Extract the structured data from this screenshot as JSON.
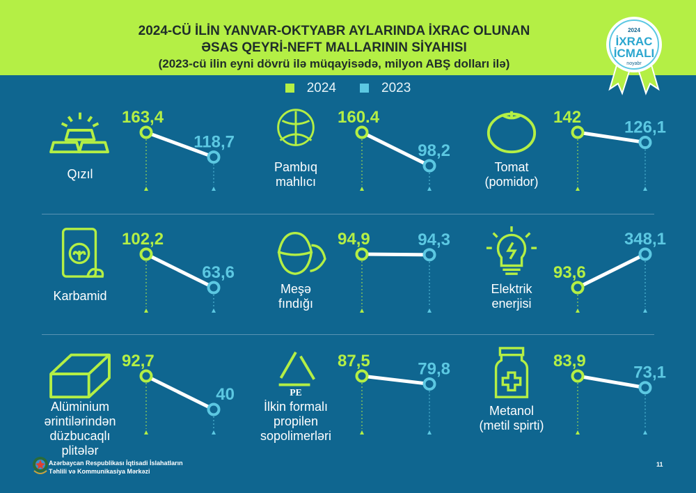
{
  "header": {
    "title_line1": "2024-CÜ İLİN YANVAR-OKTYABR AYLARINDA İXRAC OLUNAN",
    "title_line2": "ƏSAS QEYRİ-NEFT MALLARININ SİYAHISI",
    "subtitle": "(2023-cü ilin eyni dövrü ilə müqayisədə, milyon ABŞ dolları ilə)"
  },
  "badge": {
    "year": "2024",
    "line1": "İXRAC",
    "line2": "İCMALI",
    "month": "noyabr"
  },
  "colors": {
    "top_bg": "#b4ef45",
    "body_bg": "#0f6690",
    "series_2024": "#b4ef45",
    "series_2023": "#5cc8e2"
  },
  "chart_data": {
    "type": "slope",
    "legend": [
      {
        "name": "2024",
        "color": "#b4ef45"
      },
      {
        "name": "2023",
        "color": "#5cc8e2"
      }
    ],
    "panels": [
      {
        "label": [
          "Qızıl"
        ],
        "icon": "gold-bars-icon",
        "v2024": 163.4,
        "v2024_text": "163,4",
        "v2023": 118.7,
        "v2023_text": "118,7"
      },
      {
        "label": [
          "Pambıq",
          "mahlıcı"
        ],
        "icon": "cotton-icon",
        "v2024": 160.4,
        "v2024_text": "160.4",
        "v2023": 98.2,
        "v2023_text": "98,2"
      },
      {
        "label": [
          "Tomat",
          "(pomidor)"
        ],
        "icon": "tomato-icon",
        "v2024": 142,
        "v2024_text": "142",
        "v2023": 126.1,
        "v2023_text": "126,1"
      },
      {
        "label": [
          "Karbamid"
        ],
        "icon": "fertilizer-bag-icon",
        "v2024": 102.2,
        "v2024_text": "102,2",
        "v2023": 63.6,
        "v2023_text": "63,6"
      },
      {
        "label": [
          "Meşə",
          "fındığı"
        ],
        "icon": "hazelnut-icon",
        "v2024": 94.9,
        "v2024_text": "94,9",
        "v2023": 94.3,
        "v2023_text": "94,3"
      },
      {
        "label": [
          "Elektrik",
          "enerjisi"
        ],
        "icon": "lightbulb-icon",
        "v2024": 93.6,
        "v2024_text": "93,6",
        "v2023": 348.1,
        "v2023_text": "348,1"
      },
      {
        "label": [
          "Alüminium",
          "ərintilərindən",
          "düzbucaqlı",
          "plitələr"
        ],
        "icon": "aluminium-plate-icon",
        "v2024": 92.7,
        "v2024_text": "92,7",
        "v2023": 40,
        "v2023_text": "40"
      },
      {
        "label": [
          "İlkin formalı",
          "propilen",
          "sopolimerləri"
        ],
        "icon": "recycle-pe-icon",
        "v2024": 87.5,
        "v2024_text": "87,5",
        "v2023": 79.8,
        "v2023_text": "79,8"
      },
      {
        "label": [
          "Metanol",
          "(metil spirti)"
        ],
        "icon": "bottle-icon",
        "v2024": 83.9,
        "v2024_text": "83,9",
        "v2023": 73.1,
        "v2023_text": "73,1"
      }
    ]
  },
  "footer": {
    "org_line1": "Azərbaycan Respublikası İqtisadi İslahatların",
    "org_line2": "Təhlili və Kommunikasiya Mərkəzi",
    "page": "11"
  }
}
